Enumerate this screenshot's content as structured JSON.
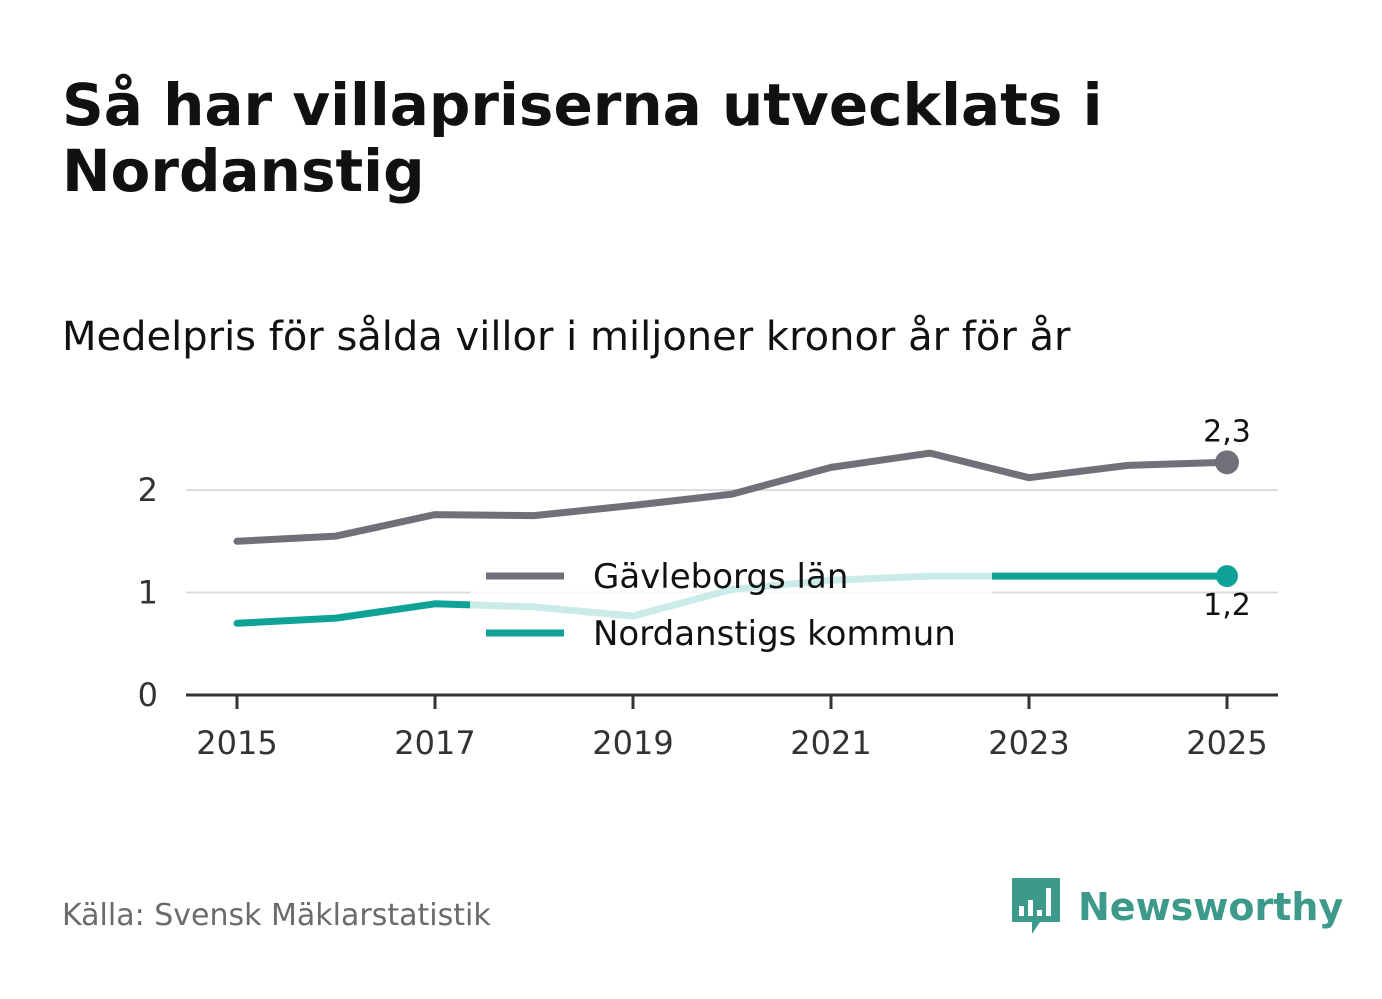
{
  "title": "Så har villapriserna utvecklats i Nordanstig",
  "subtitle": "Medelpris för sålda villor i miljoner kronor år för år",
  "source": "Källa: Svensk Mäklarstatistik",
  "brand": {
    "name": "Newsworthy",
    "icon": "newsworthy-logo-icon",
    "color": "#3d9a8b"
  },
  "chart_data": {
    "type": "line",
    "title": "Så har villapriserna utvecklats i Nordanstig",
    "subtitle": "Medelpris för sålda villor i miljoner kronor år för år",
    "xlabel": "",
    "ylabel": "",
    "x": [
      2015,
      2016,
      2017,
      2018,
      2019,
      2020,
      2021,
      2022,
      2023,
      2024,
      2025
    ],
    "x_ticks": [
      "2015",
      "2017",
      "2019",
      "2021",
      "2023",
      "2025"
    ],
    "y_ticks": [
      "0",
      "1",
      "2"
    ],
    "ylim": [
      0,
      2.5
    ],
    "grid": true,
    "legend_position": "center",
    "series": [
      {
        "name": "Gävleborgs län",
        "color": "#707078",
        "values": [
          1.5,
          1.55,
          1.76,
          1.75,
          1.85,
          1.96,
          2.22,
          2.36,
          2.12,
          2.24,
          2.27
        ],
        "end_label": "2,3"
      },
      {
        "name": "Nordanstigs kommun",
        "color": "#0fa398",
        "values": [
          0.7,
          0.75,
          0.89,
          0.86,
          0.77,
          1.03,
          1.12,
          1.16,
          1.16,
          1.16,
          1.16
        ],
        "end_label": "1,2"
      }
    ]
  }
}
